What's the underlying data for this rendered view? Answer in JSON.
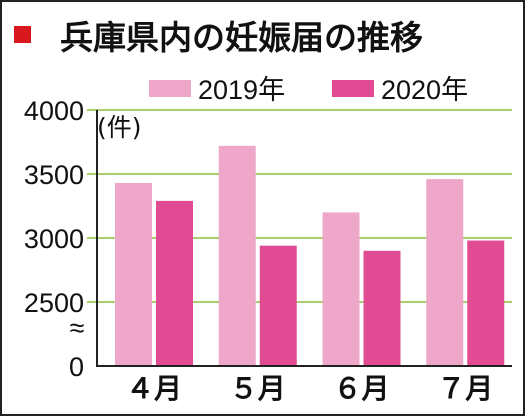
{
  "chart_data": {
    "type": "bar",
    "title": "兵庫県内の妊娠届の推移",
    "unit_label": "(件)",
    "categories": [
      "４月",
      "５月",
      "６月",
      "７月"
    ],
    "series": [
      {
        "name": "2019年",
        "color": "#eea7c8",
        "values": [
          3430,
          3720,
          3200,
          3460
        ]
      },
      {
        "name": "2020年",
        "color": "#e04b94",
        "values": [
          3290,
          2940,
          2900,
          2980
        ]
      }
    ],
    "yticks": [
      "4000",
      "3500",
      "3000",
      "2500",
      "0"
    ],
    "ylim": [
      2000,
      4000
    ],
    "axis_break": "≈",
    "gridlines": true,
    "gridline_color": "#8cbf3f",
    "title_marker_color": "#d7191f",
    "legend_position": "top"
  }
}
